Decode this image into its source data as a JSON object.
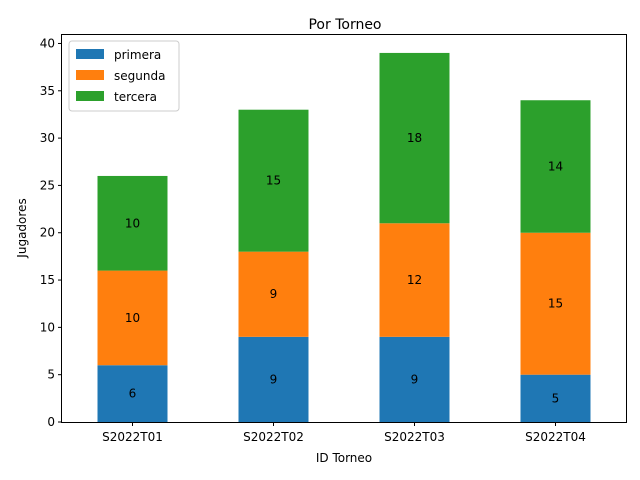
{
  "chart_data": {
    "type": "bar",
    "stacked": true,
    "title": "Por Torneo",
    "xlabel": "ID Torneo",
    "ylabel": "Jugadores",
    "categories": [
      "S2022T01",
      "S2022T02",
      "S2022T03",
      "S2022T04"
    ],
    "series": [
      {
        "name": "primera",
        "values": [
          6,
          9,
          9,
          5
        ],
        "color": "#1f77b4"
      },
      {
        "name": "segunda",
        "values": [
          10,
          9,
          12,
          15
        ],
        "color": "#ff7f0e"
      },
      {
        "name": "tercera",
        "values": [
          10,
          15,
          18,
          14
        ],
        "color": "#2ca02c"
      }
    ],
    "ylim": [
      0,
      41
    ],
    "yticks": [
      0,
      5,
      10,
      15,
      20,
      25,
      30,
      35,
      40
    ],
    "grid": false,
    "legend_position": "top-left",
    "data_labels": true
  }
}
